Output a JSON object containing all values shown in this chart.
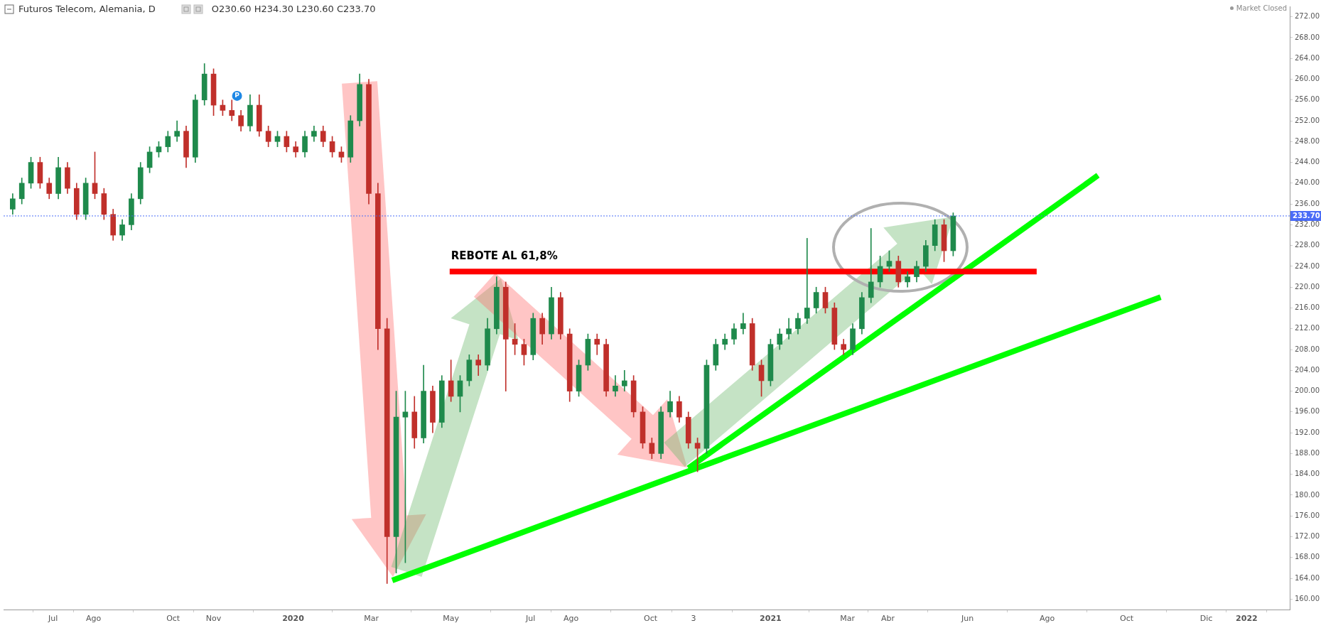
{
  "chart_data": {
    "type": "candlestick",
    "title": "Futuros Telecom, Alemania, D",
    "subtitle": "O230.60 H234.30 L230.60 C233.70",
    "annotations": [
      "Market Closed",
      {
        "text": "REBOTE AL 61,8%",
        "x": "2020-05-01",
        "y": 223
      },
      {
        "text": "P",
        "x": "2019-11-19",
        "y": 256.8
      }
    ],
    "x": [
      "2019-05-31",
      "2019-06-07",
      "2019-06-14",
      "2019-06-21",
      "2019-06-28",
      "2019-07-05",
      "2019-07-12",
      "2019-07-19",
      "2019-07-26",
      "2019-08-02",
      "2019-08-09",
      "2019-08-16",
      "2019-08-23",
      "2019-08-30",
      "2019-09-06",
      "2019-09-13",
      "2019-09-20",
      "2019-09-27",
      "2019-10-04",
      "2019-10-11",
      "2019-10-18",
      "2019-10-25",
      "2019-11-01",
      "2019-11-08",
      "2019-11-15",
      "2019-11-22",
      "2019-11-29",
      "2019-12-06",
      "2019-12-13",
      "2019-12-20",
      "2019-12-27",
      "2020-01-03",
      "2020-01-10",
      "2020-01-17",
      "2020-01-24",
      "2020-01-31",
      "2020-02-07",
      "2020-02-14",
      "2020-02-21",
      "2020-02-28",
      "2020-03-06",
      "2020-03-13",
      "2020-03-20",
      "2020-03-27",
      "2020-04-03",
      "2020-04-10",
      "2020-04-17",
      "2020-04-24",
      "2020-05-01",
      "2020-05-08",
      "2020-05-15",
      "2020-05-22",
      "2020-05-29",
      "2020-06-05",
      "2020-06-12",
      "2020-06-19",
      "2020-06-26",
      "2020-07-03",
      "2020-07-10",
      "2020-07-17",
      "2020-07-24",
      "2020-07-31",
      "2020-08-07",
      "2020-08-14",
      "2020-08-21",
      "2020-08-28",
      "2020-09-04",
      "2020-09-11",
      "2020-09-18",
      "2020-09-25",
      "2020-10-02",
      "2020-10-09",
      "2020-10-16",
      "2020-10-23",
      "2020-10-30",
      "2020-11-06",
      "2020-11-13",
      "2020-11-20",
      "2020-11-27",
      "2020-12-04",
      "2020-12-11",
      "2020-12-18",
      "2020-12-25",
      "2021-01-01",
      "2021-01-08",
      "2021-01-15",
      "2021-01-22",
      "2021-01-29",
      "2021-02-05",
      "2021-02-12",
      "2021-02-19",
      "2021-02-26",
      "2021-03-05",
      "2021-03-12",
      "2021-03-19",
      "2021-03-26",
      "2021-04-02",
      "2021-04-09",
      "2021-04-16",
      "2021-04-23",
      "2021-04-30",
      "2021-05-07",
      "2021-05-14",
      "2021-05-21"
    ],
    "ohlc": [
      [
        235,
        238,
        234,
        237
      ],
      [
        237,
        241,
        236,
        240
      ],
      [
        240,
        245,
        239,
        244
      ],
      [
        244,
        245,
        239,
        240
      ],
      [
        240,
        241,
        237,
        238
      ],
      [
        238,
        245,
        237,
        243
      ],
      [
        243,
        244,
        238,
        239
      ],
      [
        239,
        240,
        233,
        234
      ],
      [
        234,
        241,
        233,
        240
      ],
      [
        240,
        246,
        237,
        238
      ],
      [
        238,
        239,
        233,
        234
      ],
      [
        234,
        235,
        229,
        230
      ],
      [
        230,
        233,
        229,
        232
      ],
      [
        232,
        238,
        231,
        237
      ],
      [
        237,
        244,
        236,
        243
      ],
      [
        243,
        247,
        242,
        246
      ],
      [
        246,
        248,
        245,
        247
      ],
      [
        247,
        250,
        246,
        249
      ],
      [
        249,
        252,
        248,
        250
      ],
      [
        250,
        251,
        243,
        245
      ],
      [
        245,
        257,
        244,
        256
      ],
      [
        256,
        263,
        255,
        261
      ],
      [
        261,
        262,
        253,
        255
      ],
      [
        255,
        256,
        253,
        254
      ],
      [
        254,
        256,
        252,
        253
      ],
      [
        253,
        254,
        250,
        251
      ],
      [
        251,
        257,
        250,
        255
      ],
      [
        255,
        257,
        249,
        250
      ],
      [
        250,
        251,
        247,
        248
      ],
      [
        248,
        250,
        247,
        249
      ],
      [
        249,
        250,
        246,
        247
      ],
      [
        247,
        248,
        245,
        246
      ],
      [
        246,
        250,
        245,
        249
      ],
      [
        249,
        251,
        248,
        250
      ],
      [
        250,
        251,
        247,
        248
      ],
      [
        248,
        249,
        245,
        246
      ],
      [
        246,
        247,
        244,
        245
      ],
      [
        245,
        253,
        244,
        252
      ],
      [
        252,
        261,
        251,
        259
      ],
      [
        259,
        260,
        236,
        238
      ],
      [
        238,
        240,
        208,
        212
      ],
      [
        212,
        214,
        163,
        172
      ],
      [
        172,
        200,
        165,
        195
      ],
      [
        195,
        200,
        167,
        196
      ],
      [
        196,
        199,
        189,
        191
      ],
      [
        191,
        205,
        190,
        200
      ],
      [
        200,
        201,
        192,
        194
      ],
      [
        194,
        203,
        193,
        202
      ],
      [
        202,
        206,
        198,
        199
      ],
      [
        199,
        203,
        196,
        202
      ],
      [
        202,
        207,
        201,
        206
      ],
      [
        206,
        207,
        203,
        205
      ],
      [
        205,
        214,
        204,
        212
      ],
      [
        212,
        222,
        211,
        220
      ],
      [
        220,
        221,
        200,
        210
      ],
      [
        210,
        213,
        207,
        209
      ],
      [
        209,
        210,
        205,
        207
      ],
      [
        207,
        215,
        206,
        214
      ],
      [
        214,
        215,
        209,
        211
      ],
      [
        211,
        220,
        210,
        218
      ],
      [
        218,
        219,
        210,
        211
      ],
      [
        211,
        212,
        198,
        200
      ],
      [
        200,
        206,
        199,
        205
      ],
      [
        205,
        211,
        204,
        210
      ],
      [
        210,
        211,
        207,
        209
      ],
      [
        209,
        210,
        199,
        200
      ],
      [
        200,
        203,
        199,
        201
      ],
      [
        201,
        204,
        200,
        202
      ],
      [
        202,
        203,
        195,
        196
      ],
      [
        196,
        197,
        189,
        190
      ],
      [
        190,
        191,
        187,
        188
      ],
      [
        188,
        197,
        187,
        196
      ],
      [
        196,
        200,
        195,
        198
      ],
      [
        198,
        199,
        194,
        195
      ],
      [
        195,
        196,
        189,
        190
      ],
      [
        190,
        191,
        184.5,
        189
      ],
      [
        189,
        206,
        188,
        205
      ],
      [
        205,
        210,
        204,
        209
      ],
      [
        209,
        211,
        208,
        210
      ],
      [
        210,
        213,
        209,
        212
      ],
      [
        212,
        215,
        211,
        213
      ],
      [
        213,
        214,
        204,
        205
      ],
      [
        205,
        206,
        199,
        202
      ],
      [
        202,
        210,
        201,
        209
      ],
      [
        209,
        212,
        208,
        211
      ],
      [
        211,
        214,
        210,
        212
      ],
      [
        212,
        215,
        211,
        214
      ],
      [
        214,
        229.4,
        213,
        216
      ],
      [
        216,
        220,
        215,
        219
      ],
      [
        219,
        220,
        215,
        216
      ],
      [
        216,
        217,
        208,
        209
      ],
      [
        209,
        210,
        207,
        208
      ],
      [
        208,
        213,
        207,
        212
      ],
      [
        212,
        219,
        211,
        218
      ],
      [
        218,
        231.3,
        217,
        221
      ],
      [
        221,
        226,
        220,
        224
      ],
      [
        224,
        227,
        223,
        225
      ],
      [
        225,
        226,
        220,
        221
      ],
      [
        221,
        223,
        220,
        222
      ],
      [
        222,
        225,
        221,
        224
      ],
      [
        224,
        229,
        223,
        228
      ],
      [
        228,
        233,
        227,
        232
      ],
      [
        232,
        233,
        224.9,
        227
      ],
      [
        227,
        234.3,
        226,
        233.7
      ]
    ],
    "series": [
      {
        "type": "line",
        "color": "#ff0000",
        "x": [
          "2020-04-30",
          "2021-07-24"
        ],
        "values": [
          223,
          223
        ]
      },
      {
        "type": "line",
        "color": "#00ff00",
        "x": [
          "2020-03-17",
          "2021-10-27"
        ],
        "values": [
          163.6,
          218.1
        ]
      },
      {
        "type": "line",
        "color": "#00ff00",
        "x": [
          "2020-10-30",
          "2021-09-09"
        ],
        "values": [
          185.2,
          241.5
        ]
      }
    ],
    "ref_lines": [
      {
        "axis": "y",
        "value": 233.7,
        "label": "233.70",
        "color": "#4a6cf7",
        "line_style": "dotted"
      }
    ],
    "xlim": [
      "2019-05-24",
      "2022-02-03"
    ],
    "xticks": [
      {
        "value": "2019-07-01",
        "label": "Jul"
      },
      {
        "value": "2019-08-01",
        "label": "Ago"
      },
      {
        "value": "2019-10-01",
        "label": "Oct"
      },
      {
        "value": "2019-11-01",
        "label": "Nov"
      },
      {
        "value": "2020-01-01",
        "label": "2020"
      },
      {
        "value": "2020-03-01",
        "label": "Mar"
      },
      {
        "value": "2020-05-01",
        "label": "May"
      },
      {
        "value": "2020-07-01",
        "label": "Jul"
      },
      {
        "value": "2020-08-01",
        "label": "Ago"
      },
      {
        "value": "2020-10-01",
        "label": "Oct"
      },
      {
        "value": "2020-11-03",
        "label": "3"
      },
      {
        "value": "2021-01-01",
        "label": "2021"
      },
      {
        "value": "2021-03-01",
        "label": "Mar"
      },
      {
        "value": "2021-04-01",
        "label": "Abr"
      },
      {
        "value": "2021-06-01",
        "label": "Jun"
      },
      {
        "value": "2021-08-01",
        "label": "Ago"
      },
      {
        "value": "2021-10-01",
        "label": "Oct"
      },
      {
        "value": "2021-12-01",
        "label": "Dic"
      },
      {
        "value": "2022-01-01",
        "label": "2022"
      }
    ],
    "ylim": [
      158,
      274
    ],
    "yticks": [
      {
        "value": 160,
        "label": "160.00"
      },
      {
        "value": 164,
        "label": "164.00"
      },
      {
        "value": 168,
        "label": "168.00"
      },
      {
        "value": 172,
        "label": "172.00"
      },
      {
        "value": 176,
        "label": "176.00"
      },
      {
        "value": 180,
        "label": "180.00"
      },
      {
        "value": 184,
        "label": "184.00"
      },
      {
        "value": 188,
        "label": "188.00"
      },
      {
        "value": 192,
        "label": "192.00"
      },
      {
        "value": 196,
        "label": "196.00"
      },
      {
        "value": 200,
        "label": "200.00"
      },
      {
        "value": 204,
        "label": "204.00"
      },
      {
        "value": 208,
        "label": "208.00"
      },
      {
        "value": 212,
        "label": "212.00"
      },
      {
        "value": 216,
        "label": "216.00"
      },
      {
        "value": 220,
        "label": "220.00"
      },
      {
        "value": 224,
        "label": "224.00"
      },
      {
        "value": 228,
        "label": "228.00"
      },
      {
        "value": 232,
        "label": "232.00"
      },
      {
        "value": 236,
        "label": "236.00"
      },
      {
        "value": 240,
        "label": "240.00"
      },
      {
        "value": 244,
        "label": "244.00"
      },
      {
        "value": 248,
        "label": "248.00"
      },
      {
        "value": 252,
        "label": "252.00"
      },
      {
        "value": 256,
        "label": "256.00"
      },
      {
        "value": 260,
        "label": "260.00"
      },
      {
        "value": 264,
        "label": "264.00"
      },
      {
        "value": 268,
        "label": "268.00"
      },
      {
        "value": 272,
        "label": "272.00"
      }
    ],
    "grid": false,
    "legend": false
  }
}
